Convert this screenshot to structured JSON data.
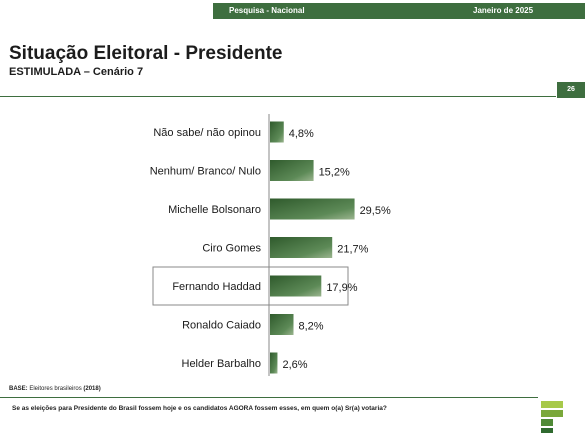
{
  "header": {
    "survey": "Pesquisa - Nacional",
    "date": "Janeiro de 2025",
    "page_number": "26"
  },
  "title": "Situação Eleitoral - Presidente",
  "subtitle": "ESTIMULADA – Cenário 7",
  "footer": {
    "base_label": "BASE:",
    "base_text": "Eleitores brasileiros",
    "base_count": "(2018)",
    "question": "Se as eleições para Presidente do Brasil fossem hoje e os candidatos AGORA fossem esses, em quem o(a) Sr(a) votaria?"
  },
  "colors": {
    "accent": "#3e6e3f",
    "bar_dark": "#2f5a2c",
    "bar_light": "#9bb58f",
    "highlight_border": "#8a8a8a",
    "logo_light": "#a7c94a"
  },
  "chart_data": {
    "type": "bar",
    "orientation": "horizontal",
    "categories": [
      "Não sabe/ não opinou",
      "Nenhum/ Branco/ Nulo",
      "Michelle Bolsonaro",
      "Ciro Gomes",
      "Fernando Haddad",
      "Ronaldo Caiado",
      "Helder Barbalho"
    ],
    "values": [
      4.8,
      15.2,
      29.5,
      21.7,
      17.9,
      8.2,
      2.6
    ],
    "value_labels": [
      "4,8%",
      "15,2%",
      "29,5%",
      "21,7%",
      "17,9%",
      "8,2%",
      "2,6%"
    ],
    "highlighted": "Fernando Haddad",
    "xlim": [
      0,
      30
    ],
    "grid": false,
    "legend": "none"
  }
}
